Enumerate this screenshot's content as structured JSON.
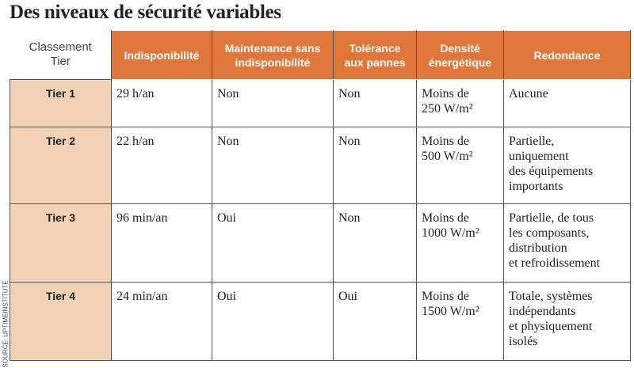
{
  "header": {
    "title": "Des niveaux de sécurité variables"
  },
  "source": "SOURCE: UPTIMEINSTITUTE",
  "table": {
    "corner": [
      "Classement",
      "Tier"
    ],
    "columns": [
      [
        "Indisponibilité"
      ],
      [
        "Maintenance sans",
        "indisponibilité"
      ],
      [
        "Tolérance",
        "aux pannes"
      ],
      [
        "Densité",
        "énergétique"
      ],
      [
        "Redondance"
      ]
    ],
    "rows": [
      {
        "label": "Tier 1",
        "cells": [
          [
            "29 h/an"
          ],
          [
            "Non"
          ],
          [
            "Non"
          ],
          [
            "Moins de",
            "250 W/m²"
          ],
          [
            "Aucune"
          ]
        ]
      },
      {
        "label": "Tier 2",
        "cells": [
          [
            "22 h/an"
          ],
          [
            "Non"
          ],
          [
            "Non"
          ],
          [
            "Moins de",
            "500 W/m²"
          ],
          [
            "Partielle,",
            "uniquement",
            "des équipements",
            "importants"
          ]
        ]
      },
      {
        "label": "Tier 3",
        "cells": [
          [
            "96 min/an"
          ],
          [
            "Oui"
          ],
          [
            "Non"
          ],
          [
            "Moins de",
            "1000 W/m²"
          ],
          [
            "Partielle, de tous",
            "les composants,",
            "distribution",
            "et refroidissement"
          ]
        ]
      },
      {
        "label": "Tier 4",
        "cells": [
          [
            "24 min/an"
          ],
          [
            "Oui"
          ],
          [
            "Oui"
          ],
          [
            "Moins de",
            "1500 W/m²"
          ],
          [
            "Totale, systèmes",
            "indépendants",
            "et physiquement",
            "isolés"
          ]
        ]
      }
    ]
  }
}
